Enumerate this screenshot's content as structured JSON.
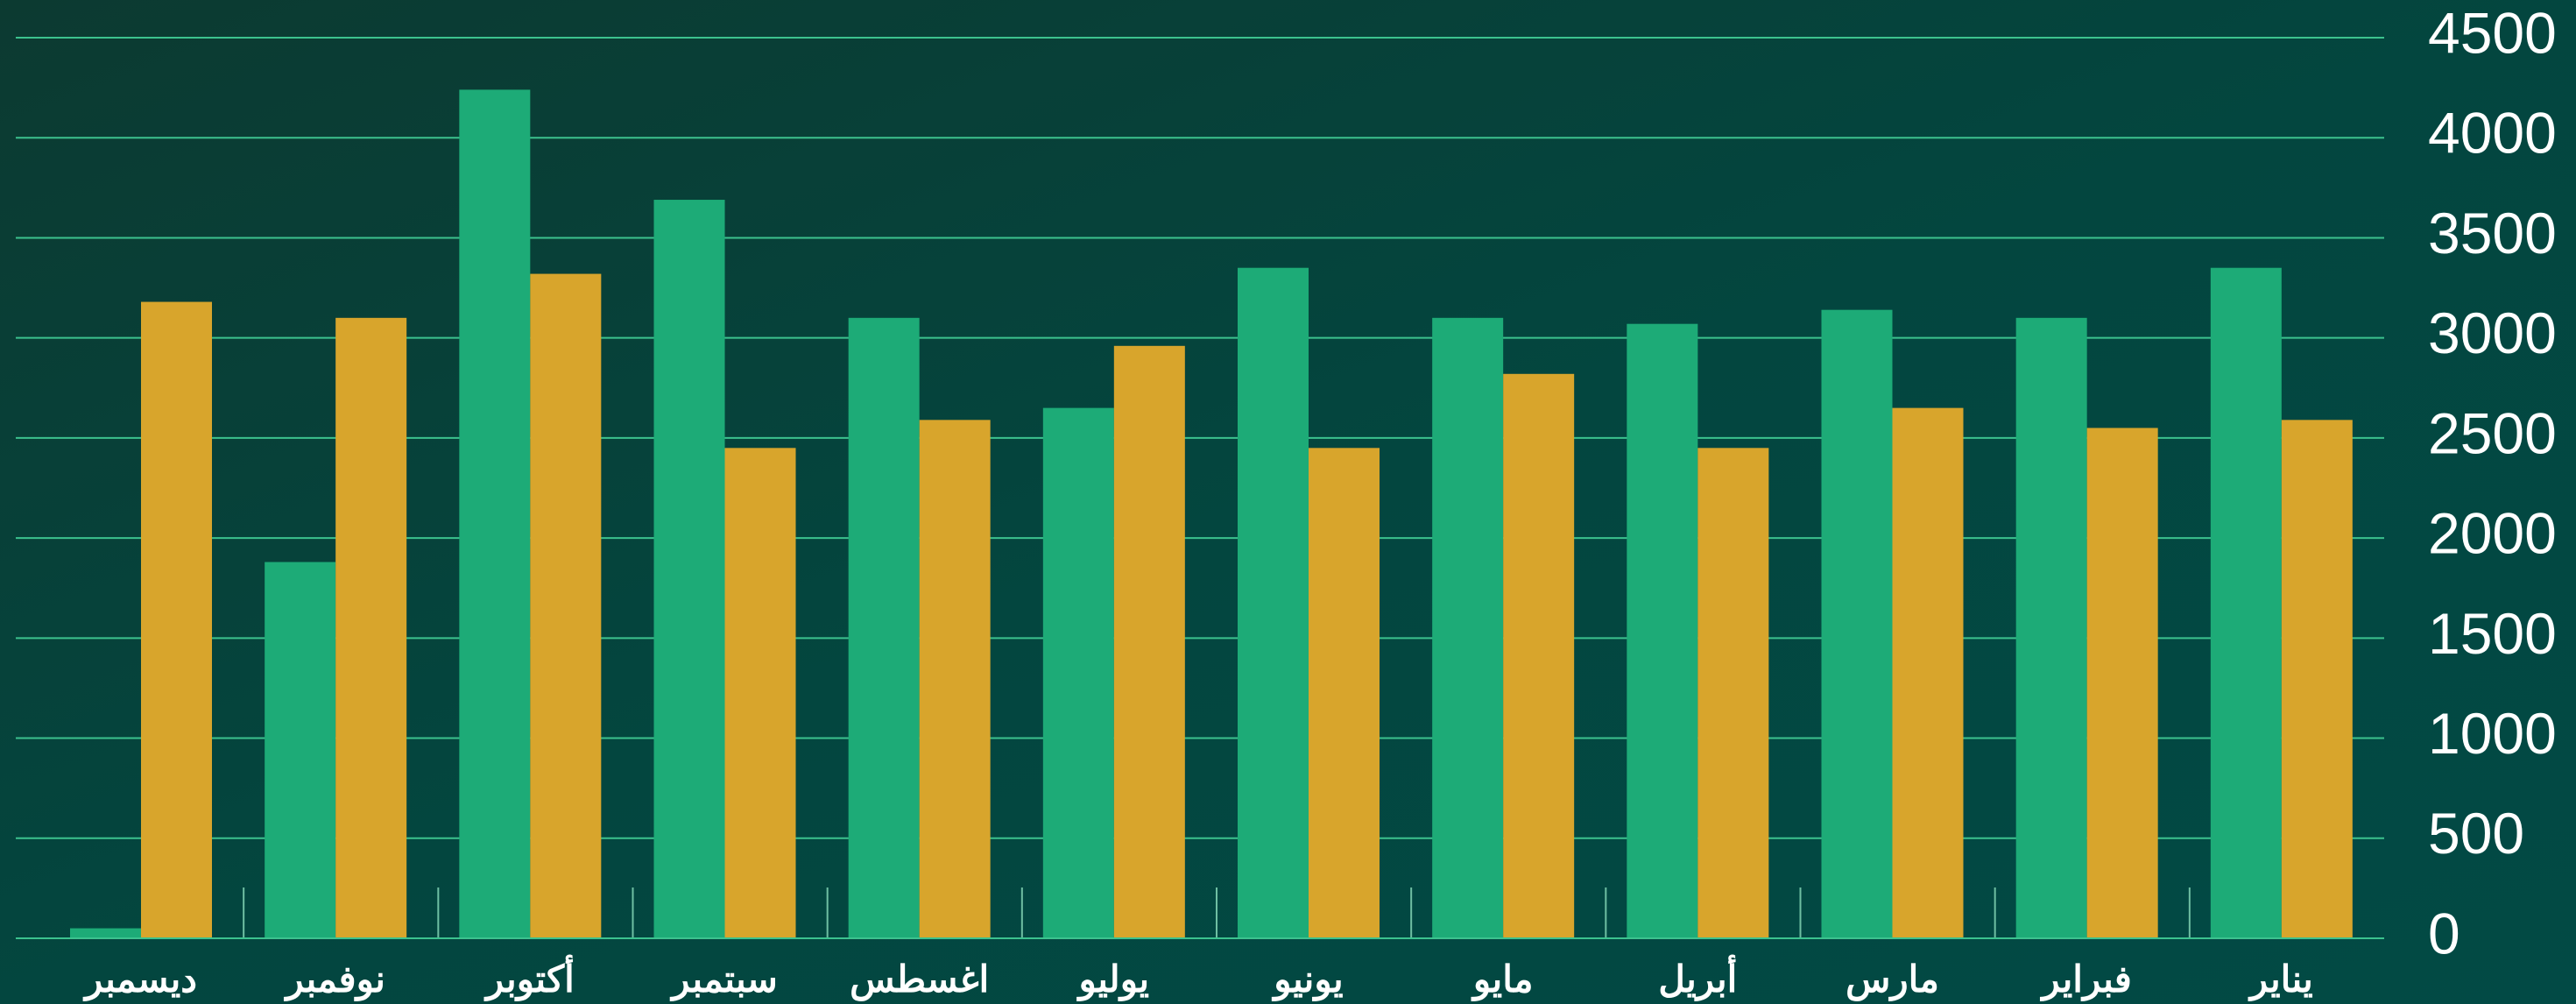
{
  "chart_data": {
    "type": "bar",
    "categories": [
      "يناير",
      "فبراير",
      "مارس",
      "أبريل",
      "مايو",
      "يونيو",
      "يوليو",
      "اغسطس",
      "سبتمبر",
      "أكتوبر",
      "نوفمبر",
      "ديسمبر"
    ],
    "series": [
      {
        "color": "#1dab77",
        "values": [
          3350,
          3100,
          3140,
          3070,
          3100,
          3350,
          2650,
          3100,
          3690,
          4240,
          1880,
          50
        ]
      },
      {
        "color": "#d8a52c",
        "values": [
          2590,
          2550,
          2650,
          2450,
          2820,
          2450,
          2960,
          2590,
          2450,
          3320,
          3100,
          3180
        ]
      }
    ],
    "ylim": [
      0,
      4500
    ],
    "yticks": [
      0,
      500,
      1000,
      1500,
      2000,
      2500,
      3000,
      3500,
      4000,
      4500
    ],
    "grid": true,
    "direction": "rtl"
  }
}
